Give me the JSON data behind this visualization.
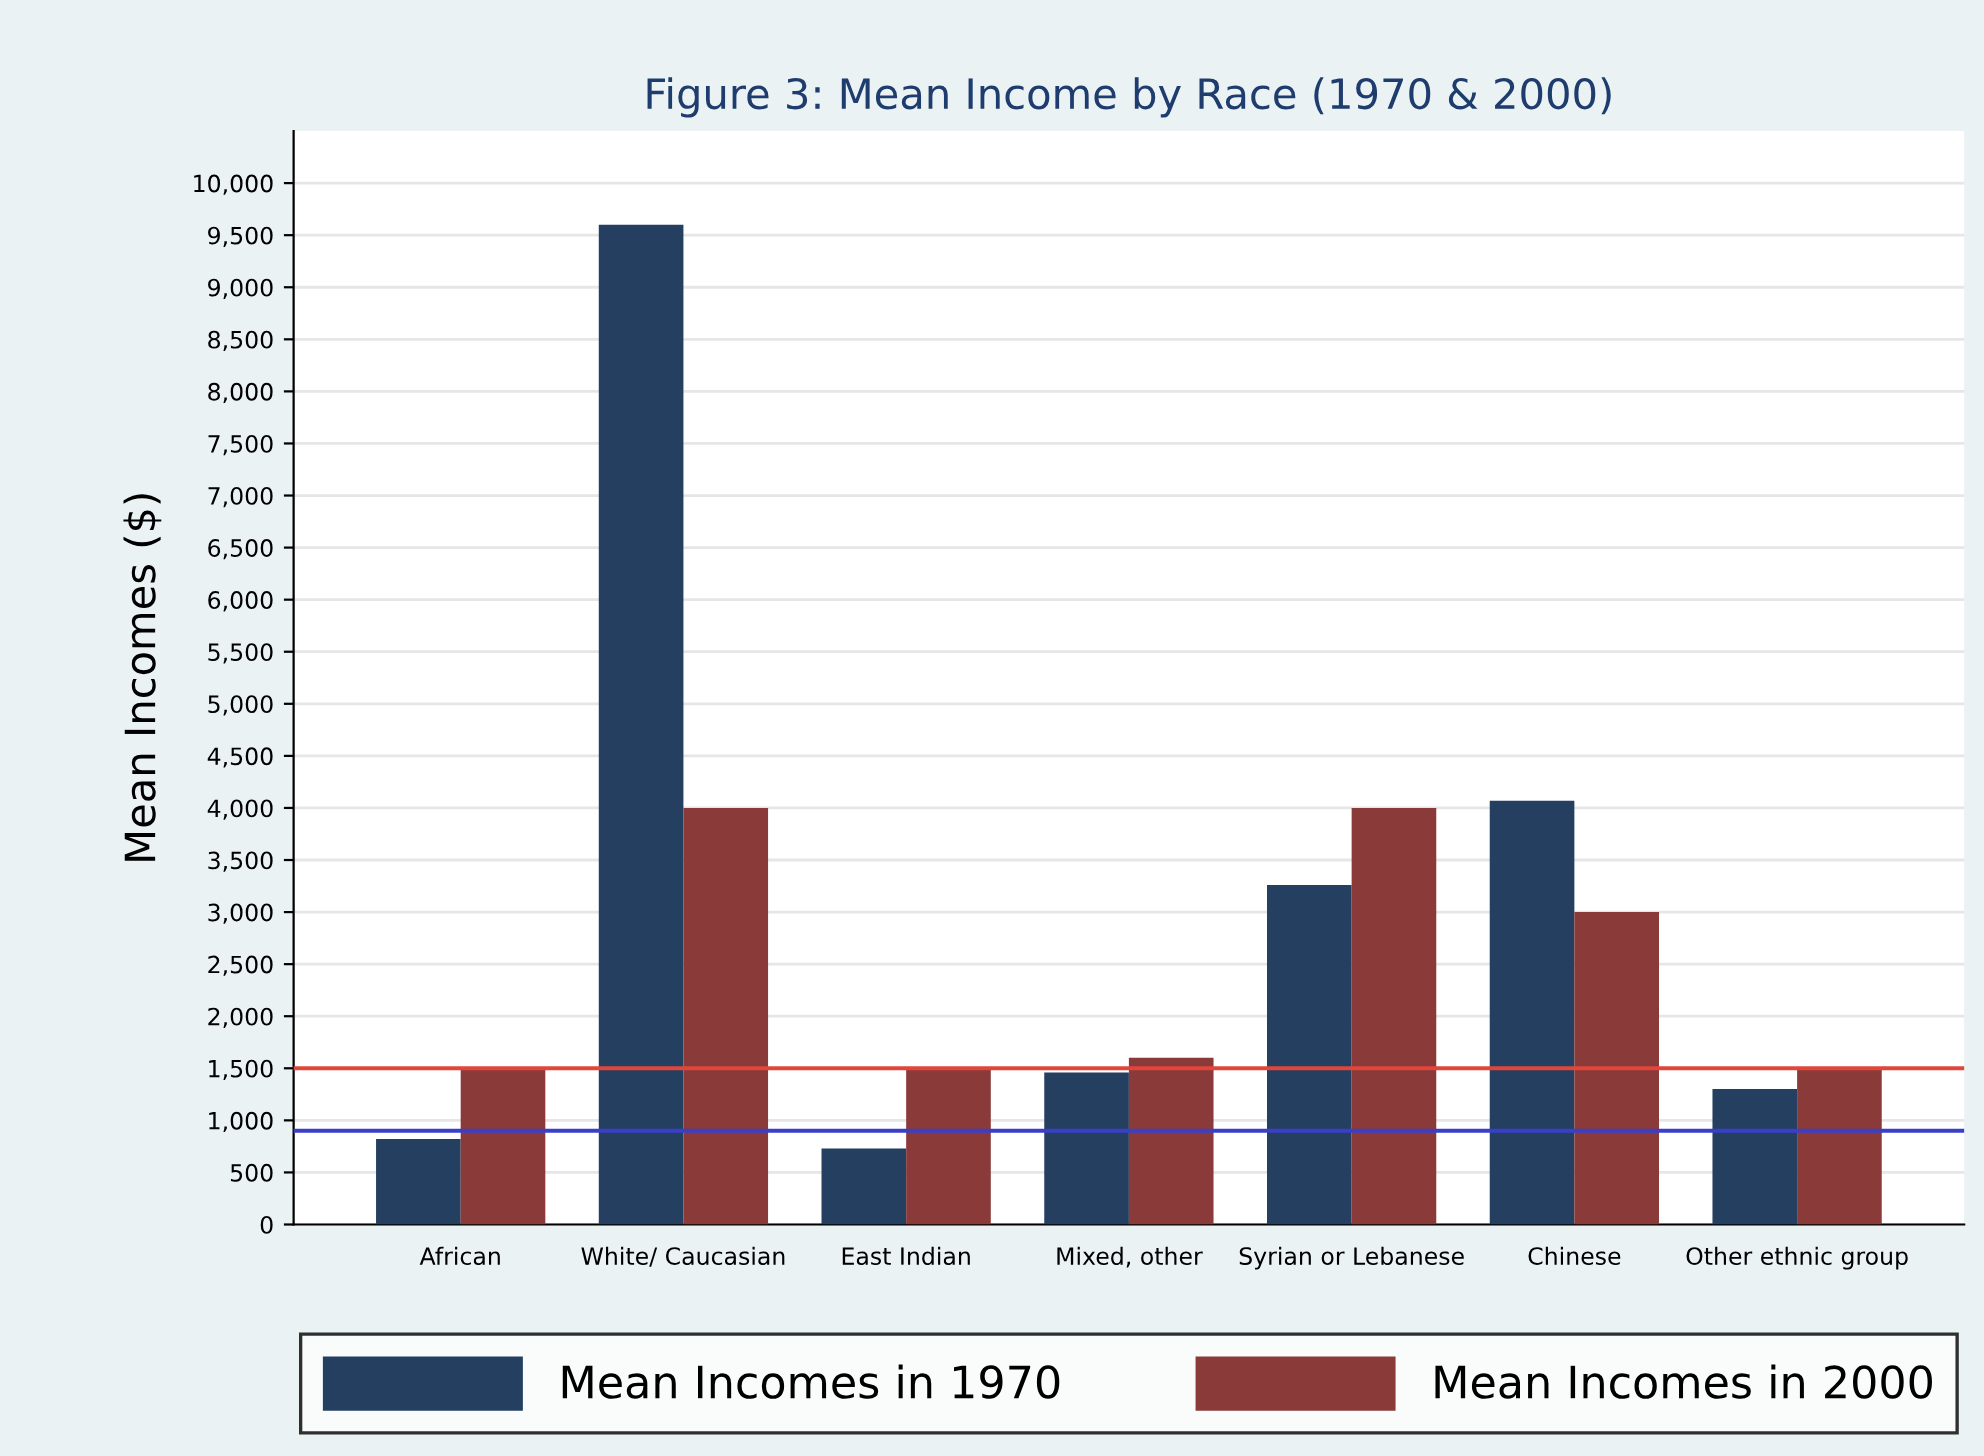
{
  "chart_data": {
    "type": "bar",
    "title": "Figure 3: Mean Income by Race (1970 & 2000)",
    "ylabel": "Mean Incomes ($)",
    "categories": [
      "African",
      "White/ Caucasian",
      "East Indian",
      "Mixed, other",
      "Syrian or Lebanese",
      "Chinese",
      "Other ethnic group"
    ],
    "series": [
      {
        "name": "Mean Incomes in 1970",
        "color": "#243f60",
        "values": [
          820,
          9600,
          730,
          1460,
          3260,
          4070,
          1300
        ]
      },
      {
        "name": "Mean Incomes in 2000",
        "color": "#8b3a3a",
        "values": [
          1500,
          4000,
          1500,
          1600,
          4000,
          3000,
          1500
        ]
      }
    ],
    "ylim": [
      0,
      10500
    ],
    "yticks": [
      {
        "value": 0,
        "label": "0"
      },
      {
        "value": 500,
        "label": "500"
      },
      {
        "value": 1000,
        "label": "1,000"
      },
      {
        "value": 1500,
        "label": "1,500"
      },
      {
        "value": 2000,
        "label": "2,000"
      },
      {
        "value": 2500,
        "label": "2,500"
      },
      {
        "value": 3000,
        "label": "3,000"
      },
      {
        "value": 3500,
        "label": "3,500"
      },
      {
        "value": 4000,
        "label": "4,000"
      },
      {
        "value": 4500,
        "label": "4,500"
      },
      {
        "value": 5000,
        "label": "5,000"
      },
      {
        "value": 5500,
        "label": "5,500"
      },
      {
        "value": 6000,
        "label": "6,000"
      },
      {
        "value": 6500,
        "label": "6,500"
      },
      {
        "value": 7000,
        "label": "7,000"
      },
      {
        "value": 7500,
        "label": "7,500"
      },
      {
        "value": 8000,
        "label": "8,000"
      },
      {
        "value": 8500,
        "label": "8,500"
      },
      {
        "value": 9000,
        "label": "9,000"
      },
      {
        "value": 9500,
        "label": "9,500"
      },
      {
        "value": 10000,
        "label": "10,000"
      }
    ],
    "ref_lines": [
      {
        "axis": "y",
        "value": 1500,
        "color": "#e0463a"
      },
      {
        "axis": "y",
        "value": 900,
        "color": "#3a3fc8"
      }
    ],
    "grid": "y",
    "legend": "bottom"
  }
}
